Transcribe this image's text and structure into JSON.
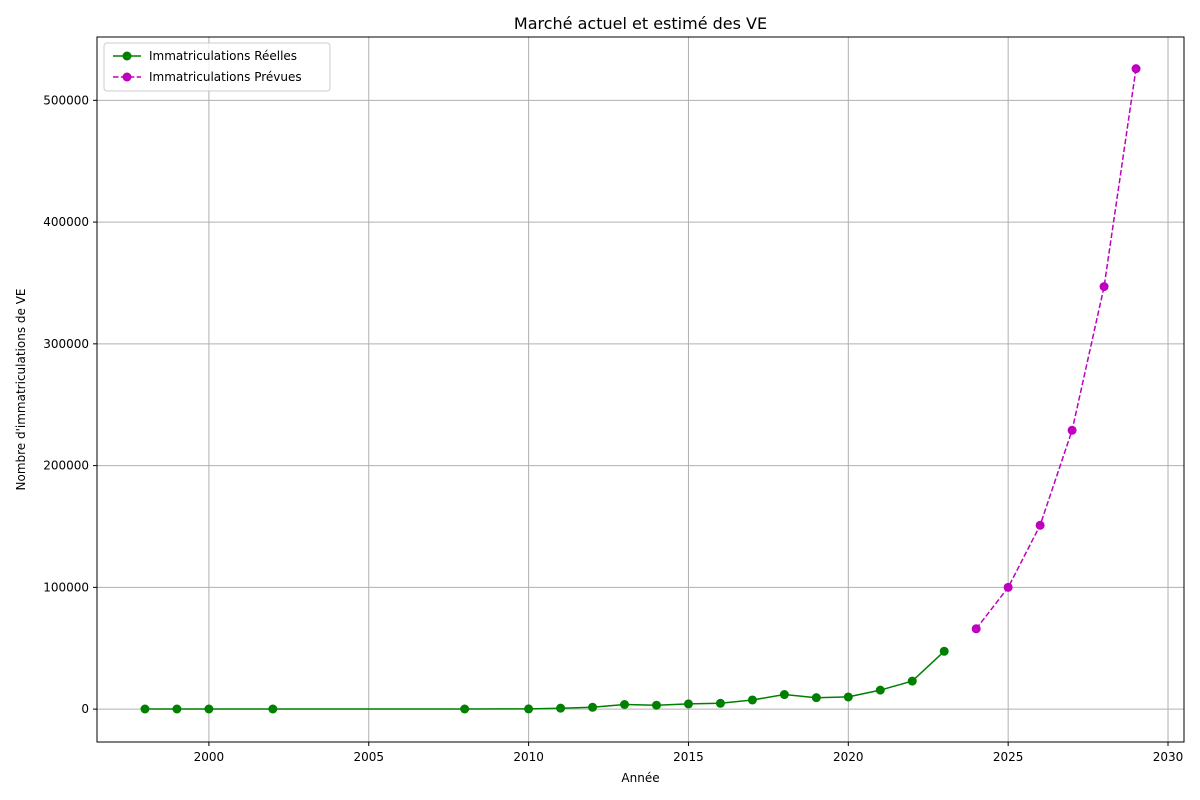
{
  "chart_data": {
    "type": "line",
    "title": "Marché actuel et estimé des VE",
    "xlabel": "Année",
    "ylabel": "Nombre d'immatriculations de VE",
    "xlim": [
      1996.5,
      2030.5
    ],
    "ylim": [
      -27000,
      552000
    ],
    "xticks": [
      2000,
      2005,
      2010,
      2015,
      2020,
      2025,
      2030
    ],
    "yticks": [
      0,
      100000,
      200000,
      300000,
      400000,
      500000
    ],
    "grid": true,
    "legend_position": "top-left",
    "series": [
      {
        "name": "Immatriculations Réelles",
        "color": "#008000",
        "line_style": "solid",
        "marker": "circle",
        "x": [
          1998,
          1999,
          2000,
          2002,
          2008,
          2010,
          2011,
          2012,
          2013,
          2014,
          2015,
          2016,
          2017,
          2018,
          2019,
          2020,
          2021,
          2022,
          2023
        ],
        "y": [
          100,
          100,
          100,
          100,
          100,
          200,
          800,
          1500,
          3800,
          3200,
          4300,
          4800,
          7500,
          12000,
          9400,
          10000,
          15600,
          23000,
          47500
        ]
      },
      {
        "name": "Immatriculations Prévues",
        "color": "#bf00bf",
        "line_style": "dashed",
        "marker": "circle",
        "x": [
          2024,
          2025,
          2026,
          2027,
          2028,
          2029
        ],
        "y": [
          66000,
          100000,
          151000,
          229000,
          347000,
          526000
        ]
      }
    ]
  }
}
